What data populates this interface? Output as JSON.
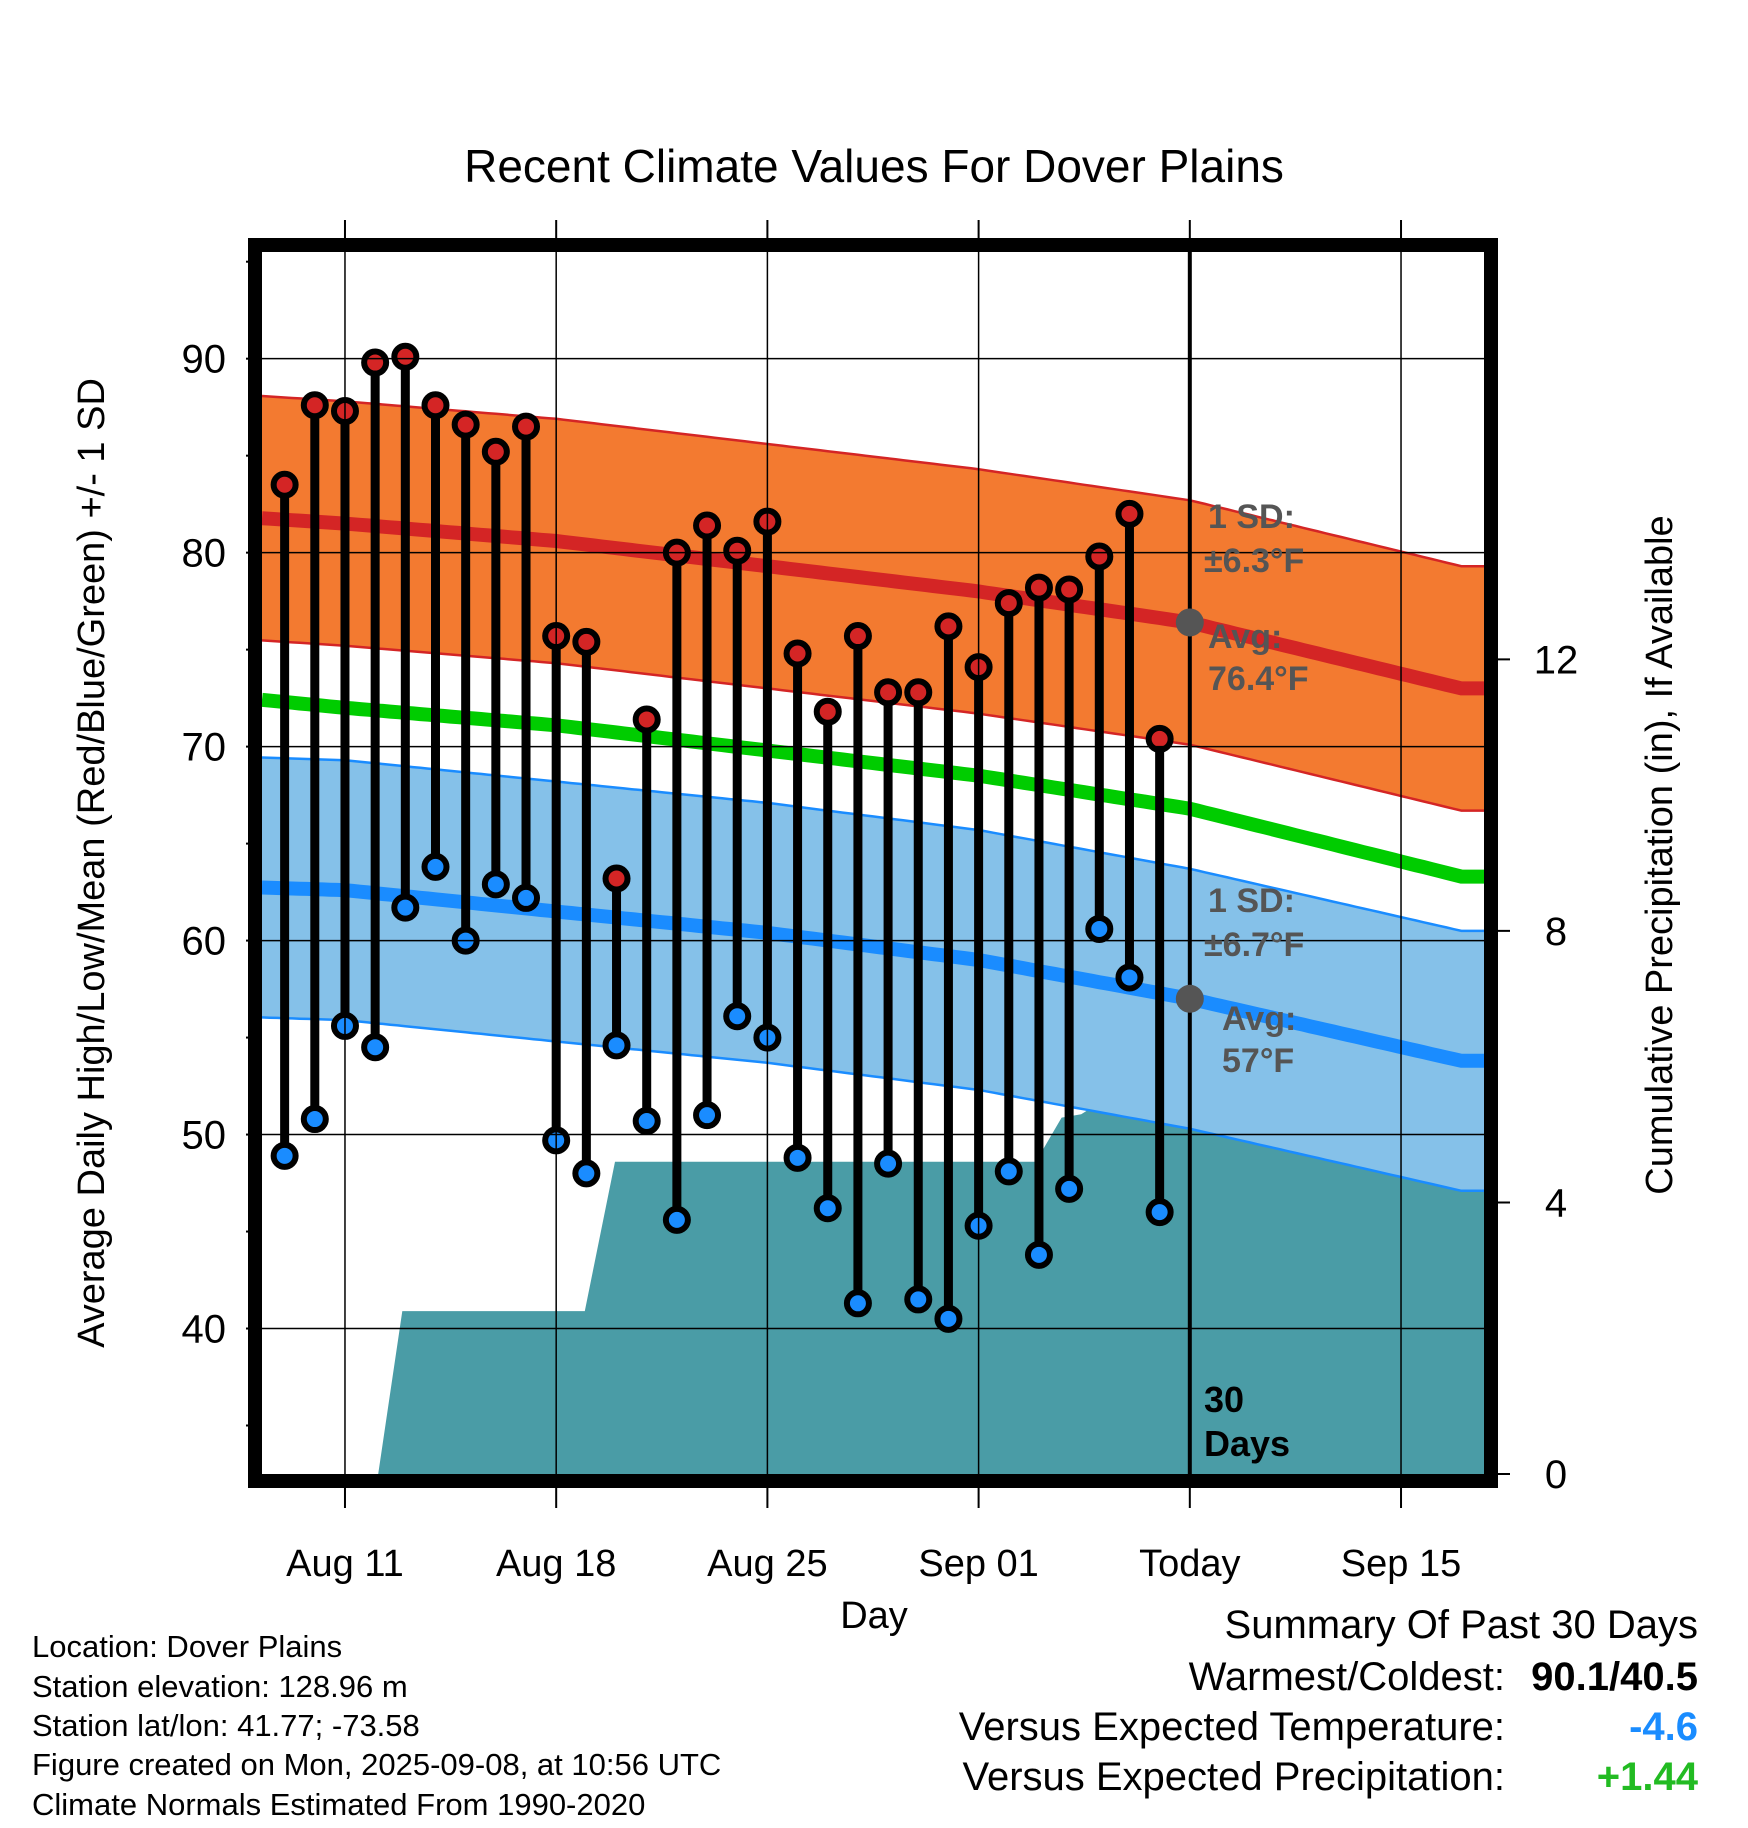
{
  "chart_data": {
    "type": "line",
    "title": "Recent Climate Values For Dover Plains",
    "xlabel": "Day",
    "ylabel_left": "Average Daily High/Low/Mean (Red/Blue/Green) +/- 1 SD",
    "ylabel_right": "Cumulative Precipitation (in), If Available",
    "x_tick_labels": [
      "Aug 11",
      "Aug 18",
      "Aug 25",
      "Sep 01",
      "Today",
      "Sep 15"
    ],
    "x_tick_days": [
      0,
      7,
      14,
      21,
      28,
      35
    ],
    "xlim_days": [
      -2.75,
      37.75
    ],
    "y_left_ticks": [
      40,
      50,
      60,
      70,
      80,
      90
    ],
    "ylim_left": [
      32.5,
      95.5
    ],
    "y_right_ticks": [
      0,
      4,
      8,
      12
    ],
    "ylim_right": [
      0,
      18
    ],
    "grid": true,
    "colors": {
      "high_band": "#f37a30",
      "high_line": "#d42525",
      "low_band": "#85c1e9",
      "low_line": "#1a8cff",
      "mean_line": "#00cc00",
      "precip": "#4a9ca6",
      "high_point": "#d42525",
      "low_point": "#1a8cff",
      "today_marker": "#555555"
    },
    "normals": {
      "days": [
        -2,
        0,
        7,
        14,
        21,
        28,
        37
      ],
      "high_avg": [
        81.7,
        81.5,
        80.6,
        79.3,
        78.0,
        76.4,
        73.0
      ],
      "high_sd": 6.3,
      "low_avg": [
        62.7,
        62.6,
        61.5,
        60.4,
        59.0,
        57.0,
        53.8
      ],
      "low_sd": 6.7,
      "mean_avg": [
        72.3,
        72.0,
        71.1,
        69.8,
        68.5,
        66.8,
        63.3
      ]
    },
    "daily": {
      "days": [
        -2,
        -1,
        0,
        1,
        2,
        3,
        4,
        5,
        6,
        7,
        8,
        9,
        10,
        11,
        12,
        13,
        14,
        15,
        16,
        17,
        18,
        19,
        20,
        21,
        22,
        23,
        24,
        25,
        26,
        27
      ],
      "highs": [
        83.5,
        87.6,
        87.3,
        89.8,
        90.1,
        87.6,
        86.6,
        85.2,
        86.5,
        75.7,
        75.4,
        63.2,
        71.4,
        80.0,
        81.4,
        80.1,
        81.6,
        74.8,
        71.8,
        75.7,
        72.8,
        72.8,
        76.2,
        74.1,
        77.4,
        78.2,
        78.1,
        79.8,
        82.0,
        70.4
      ],
      "lows": [
        48.9,
        50.8,
        55.6,
        54.5,
        61.7,
        63.8,
        60.0,
        62.9,
        62.2,
        49.7,
        48.0,
        54.6,
        50.7,
        45.6,
        51.0,
        56.1,
        55.0,
        48.8,
        46.2,
        41.3,
        48.5,
        41.5,
        40.5,
        45.3,
        48.1,
        43.8,
        47.2,
        60.6,
        58.1,
        46.0
      ]
    },
    "precip_cumulative": [
      [
        1.1,
        0
      ],
      [
        1.9,
        2.4
      ],
      [
        7.95,
        2.4
      ],
      [
        8.95,
        4.6
      ],
      [
        22.9,
        4.6
      ],
      [
        23.75,
        5.25
      ],
      [
        24.4,
        5.3
      ],
      [
        25.3,
        5.55
      ],
      [
        37.75,
        5.55
      ]
    ],
    "today_day": 28,
    "annotations": {
      "high_sd_label": "1 SD:",
      "high_sd_value": "±6.3°F",
      "high_avg_label": "Avg:",
      "high_avg_value": "76.4°F",
      "low_sd_label": "1 SD:",
      "low_sd_value": "±6.7°F",
      "low_avg_label": "Avg:",
      "low_avg_value": "57°F",
      "days_count": "30",
      "days_label": "Days"
    }
  },
  "info": {
    "location": "Location: Dover Plains",
    "elevation": "Station elevation: 128.96 m",
    "latlon": "Station lat/lon: 41.77; -73.58",
    "created": "Figure created on Mon, 2025-09-08, at 10:56 UTC",
    "normals": "Climate Normals Estimated From 1990-2020"
  },
  "summary": {
    "title": "Summary Of Past 30 Days",
    "warm_cold_label": "Warmest/Coldest:",
    "warm_cold_value": "90.1/40.5",
    "temp_label": "Versus Expected Temperature:",
    "temp_value": "-4.6",
    "temp_color": "#1a8cff",
    "precip_label": "Versus Expected Precipitation:",
    "precip_value": "+1.44",
    "precip_color": "#22bb22"
  }
}
